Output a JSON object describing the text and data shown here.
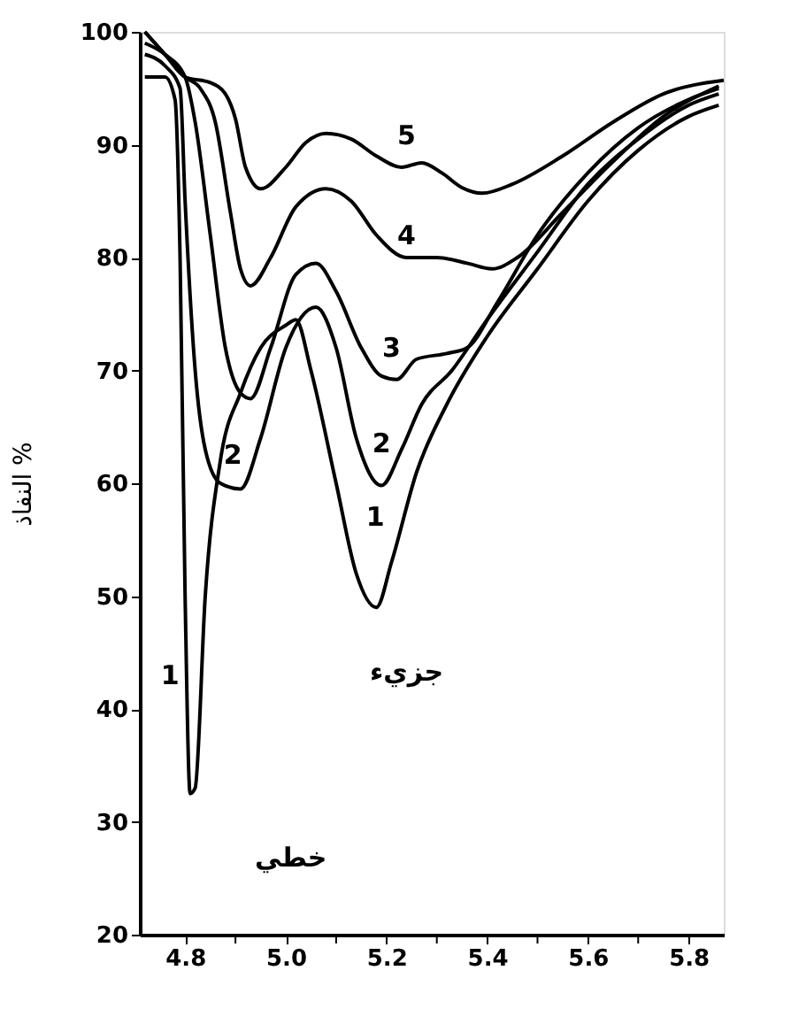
{
  "chart_data": {
    "type": "line",
    "ylabel": "النفاذ %",
    "xlim": [
      4.71,
      5.87
    ],
    "ylim": [
      20,
      100
    ],
    "xticks": [
      {
        "value": 4.8,
        "label": "4.8"
      },
      {
        "value": 4.9,
        "label": null
      },
      {
        "value": 5.0,
        "label": "5.0"
      },
      {
        "value": 5.1,
        "label": null
      },
      {
        "value": 5.2,
        "label": "5.2"
      },
      {
        "value": 5.3,
        "label": null
      },
      {
        "value": 5.4,
        "label": "5.4"
      },
      {
        "value": 5.5,
        "label": null
      },
      {
        "value": 5.6,
        "label": "5.6"
      },
      {
        "value": 5.7,
        "label": null
      },
      {
        "value": 5.8,
        "label": "5.8"
      }
    ],
    "yticks": [
      20,
      30,
      40,
      50,
      60,
      70,
      80,
      90,
      100
    ],
    "grid": false,
    "marker": "none",
    "line_style": "solid",
    "series": [
      {
        "name": "1",
        "color": "#000000",
        "x": [
          4.72,
          4.76,
          4.78,
          4.79,
          4.8,
          4.81,
          4.82,
          4.84,
          4.87,
          4.91,
          4.95,
          5.0,
          5.02,
          5.05,
          5.1,
          5.14,
          5.18,
          5.21,
          5.26,
          5.32,
          5.4,
          5.5,
          5.6,
          5.7,
          5.8,
          5.86
        ],
        "values": [
          96,
          96,
          94,
          80,
          50,
          32.5,
          33,
          50,
          62,
          68,
          72,
          74,
          74.5,
          70,
          60,
          52,
          49,
          53,
          61,
          67,
          73,
          79,
          85,
          89.5,
          92.5,
          93.5
        ]
      },
      {
        "name": "2",
        "color": "#000000",
        "x": [
          4.72,
          4.76,
          4.79,
          4.8,
          4.82,
          4.84,
          4.87,
          4.91,
          4.95,
          5.0,
          5.06,
          5.1,
          5.14,
          5.19,
          5.23,
          5.27,
          5.33,
          5.4,
          5.5,
          5.6,
          5.7,
          5.8,
          5.86
        ],
        "values": [
          98,
          97,
          95,
          85,
          70,
          63,
          60,
          59.5,
          64,
          72,
          75.6,
          72,
          64,
          59.8,
          63,
          67,
          70,
          74.5,
          80.5,
          86.5,
          90.5,
          93.5,
          94.5
        ]
      },
      {
        "name": "3",
        "color": "#000000",
        "x": [
          4.72,
          4.76,
          4.8,
          4.82,
          4.85,
          4.88,
          4.91,
          4.93,
          4.97,
          5.02,
          5.06,
          5.1,
          5.15,
          5.19,
          5.22,
          5.26,
          5.32,
          5.36,
          5.42,
          5.5,
          5.6,
          5.7,
          5.8,
          5.86
        ],
        "values": [
          99,
          98,
          96,
          92,
          82,
          72,
          68,
          67.5,
          72,
          78.5,
          79.5,
          77,
          72,
          69.5,
          69.2,
          71,
          71.5,
          72,
          76,
          82,
          87.5,
          91.5,
          94,
          95
        ]
      },
      {
        "name": "4",
        "color": "#000000",
        "x": [
          4.72,
          4.76,
          4.8,
          4.83,
          4.86,
          4.89,
          4.91,
          4.93,
          4.97,
          5.02,
          5.08,
          5.13,
          5.18,
          5.24,
          5.3,
          5.36,
          5.41,
          5.46,
          5.55,
          5.65,
          5.75,
          5.86
        ],
        "values": [
          100,
          98,
          96,
          95,
          92,
          84,
          79,
          77.5,
          80,
          84.5,
          86.1,
          85,
          82,
          80,
          80,
          79.5,
          79,
          80,
          84,
          88.5,
          92.5,
          95.2
        ]
      },
      {
        "name": "5",
        "color": "#000000",
        "x": [
          4.72,
          4.76,
          4.8,
          4.85,
          4.88,
          4.9,
          4.92,
          4.95,
          5.0,
          5.04,
          5.08,
          5.13,
          5.18,
          5.23,
          5.27,
          5.31,
          5.35,
          5.39,
          5.45,
          5.55,
          5.65,
          5.75,
          5.87
        ],
        "values": [
          100,
          98,
          96,
          95.5,
          94.5,
          92.3,
          88,
          86.1,
          88,
          90.2,
          91,
          90.5,
          89,
          88,
          88.4,
          87.5,
          86.2,
          85.7,
          86.5,
          89,
          92,
          94.5,
          95.7
        ]
      }
    ],
    "annotations": [
      "جزيء",
      "خطي"
    ]
  }
}
